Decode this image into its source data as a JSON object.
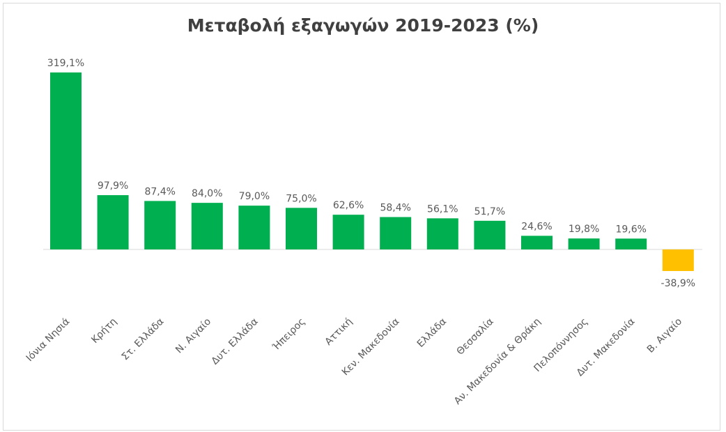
{
  "chart_data": {
    "type": "bar",
    "title": "Μεταβολή εξαγωγών 2019-2023 (%)",
    "categories": [
      "Ιόνια Νησιά",
      "Κρήτη",
      "Στ. Ελλάδα",
      "Ν. Αιγαίο",
      "Δυτ. Ελλάδα",
      "Ήπειρος",
      "Αττική",
      "Κεν. Μακεδονία",
      "Ελλάδα",
      "Θεσσαλία",
      "Αν. Μακεδονία & Θράκη",
      "Πελοπόννησος",
      "Δυτ. Μακεδονία",
      "Β. Αιγαίο"
    ],
    "values": [
      319.1,
      97.9,
      87.4,
      84.0,
      79.0,
      75.0,
      62.6,
      58.4,
      56.1,
      51.7,
      24.6,
      19.8,
      19.6,
      -38.9
    ],
    "data_labels": [
      "319,1%",
      "97,9%",
      "87,4%",
      "84,0%",
      "79,0%",
      "75,0%",
      "62,6%",
      "58,4%",
      "56,1%",
      "51,7%",
      "24,6%",
      "19,8%",
      "19,6%",
      "-38,9%"
    ],
    "xlabel": "",
    "ylabel": "",
    "grid": false,
    "legend": "none",
    "colors": {
      "positive": "#00b050",
      "negative": "#ffc000",
      "axis": "#d9d9d9"
    }
  }
}
